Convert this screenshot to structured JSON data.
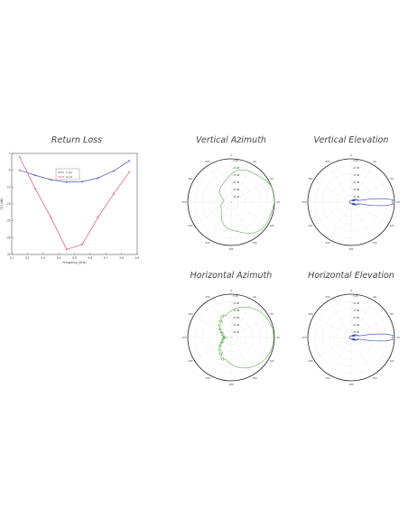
{
  "titles": {
    "return_loss": "Return Loss",
    "vertical_azimuth": "Vertical Azimuth",
    "vertical_elevation": "Vertical Elevation",
    "horizontal_azimuth": "Horizontal Azimuth",
    "horizontal_elevation": "Horizontal Elevation"
  },
  "chart_data": [
    {
      "type": "line",
      "title": "Return Loss",
      "xlabel": "Frequency (GHz)",
      "ylabel": "S11 (dB)",
      "xlim": [
        5.1,
        5.9
      ],
      "ylim": [
        -30,
        0
      ],
      "xticks": [
        "5.1",
        "5.2",
        "5.3",
        "5.4",
        "5.5",
        "5.6",
        "5.7",
        "5.8",
        "5.9"
      ],
      "yticks": [
        "0",
        "-5",
        "-10",
        "-15",
        "-20",
        "-25",
        "-30"
      ],
      "legend": "top-center",
      "series": [
        {
          "name": "V-pol",
          "color": "#4a55b0",
          "x": [
            5.15,
            5.25,
            5.35,
            5.45,
            5.55,
            5.65,
            5.75,
            5.85
          ],
          "y": [
            -5.0,
            -6.5,
            -7.8,
            -8.5,
            -8.4,
            -7.3,
            -5.2,
            -2.2
          ]
        },
        {
          "name": "H-pol",
          "color": "#e0507a",
          "x": [
            5.15,
            5.25,
            5.35,
            5.45,
            5.55,
            5.65,
            5.75,
            5.85
          ],
          "y": [
            -1.0,
            -10.5,
            -19.0,
            -28.5,
            -27.0,
            -19.0,
            -12.0,
            -5.5
          ]
        }
      ]
    },
    {
      "type": "polar",
      "title": "Vertical Azimuth",
      "color": "#5ab04a",
      "shape": "azimuth",
      "angle_labels": [
        "0",
        "30",
        "60",
        "90",
        "120",
        "150",
        "180",
        "210",
        "240",
        "270",
        "300",
        "330"
      ],
      "radial_labels": [
        "-5 dB",
        "-10 dB",
        "-15 dB",
        "-20 dB",
        "-25 dB",
        "-30 dB"
      ]
    },
    {
      "type": "polar",
      "title": "Vertical Elevation",
      "color": "#3a48a8",
      "shape": "elevation",
      "angle_labels": [
        "0",
        "30",
        "60",
        "90",
        "120",
        "150",
        "180",
        "210",
        "240",
        "270",
        "300",
        "330"
      ],
      "radial_labels": [
        "-5 dB",
        "-10 dB",
        "-15 dB",
        "-20 dB",
        "-25 dB",
        "-30 dB"
      ]
    },
    {
      "type": "polar",
      "title": "Horizontal Azimuth",
      "color": "#5ab04a",
      "shape": "azimuth2",
      "angle_labels": [
        "0",
        "30",
        "60",
        "90",
        "120",
        "150",
        "180",
        "210",
        "240",
        "270",
        "300",
        "330"
      ],
      "radial_labels": [
        "-5 dB",
        "-10 dB",
        "-15 dB",
        "-20 dB",
        "-25 dB",
        "-30 dB"
      ]
    },
    {
      "type": "polar",
      "title": "Horizontal Elevation",
      "color": "#3a48a8",
      "shape": "elevation",
      "angle_labels": [
        "0",
        "30",
        "60",
        "90",
        "120",
        "150",
        "180",
        "210",
        "240",
        "270",
        "300",
        "330"
      ],
      "radial_labels": [
        "-5 dB",
        "-10 dB",
        "-15 dB",
        "-20 dB",
        "-25 dB",
        "-30 dB"
      ]
    }
  ]
}
